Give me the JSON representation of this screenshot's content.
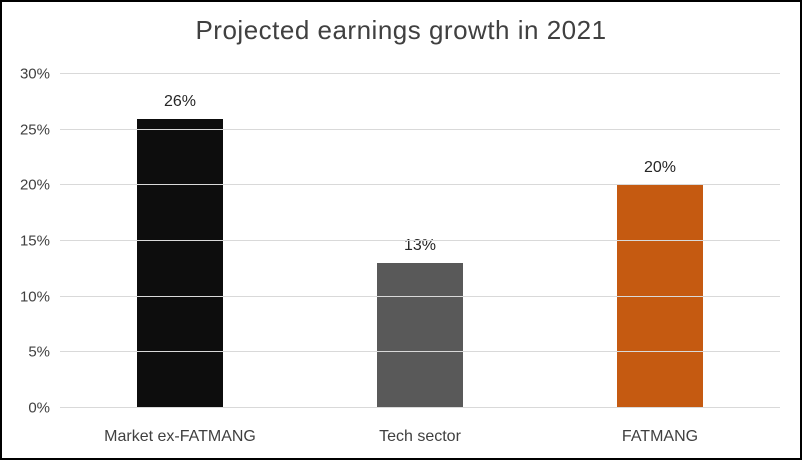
{
  "chart_data": {
    "type": "bar",
    "title": "Projected earnings growth in 2021",
    "categories": [
      "Market ex-FATMANG",
      "Tech sector",
      "FATMANG"
    ],
    "values": [
      26,
      13,
      20
    ],
    "value_labels": [
      "26%",
      "13%",
      "20%"
    ],
    "bar_colors": [
      "#0d0d0d",
      "#595959",
      "#c55a11"
    ],
    "xlabel": "",
    "ylabel": "",
    "ylim": [
      0,
      30
    ],
    "yticks": [
      0,
      5,
      10,
      15,
      20,
      25,
      30
    ],
    "ytick_labels": [
      "0%",
      "5%",
      "10%",
      "15%",
      "20%",
      "25%",
      "30%"
    ],
    "grid": true,
    "legend": false,
    "colors": {
      "title_text": "#404040",
      "axis_text": "#404040",
      "value_label_text": "#262626",
      "gridline": "#d9d9d9",
      "background": "#ffffff",
      "frame_border": "#000000"
    }
  }
}
